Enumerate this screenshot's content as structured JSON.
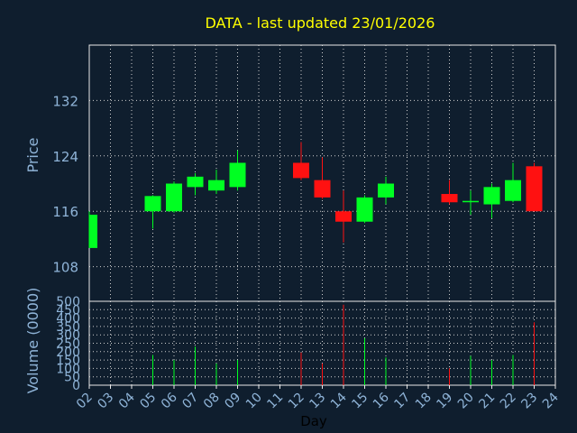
{
  "title": "DATA - last updated 23/01/2026",
  "colors": {
    "background": "#0f1e2e",
    "title": "#ffff00",
    "axis_text": "#8fb4d8",
    "up": "#00ff22",
    "down": "#ff1111",
    "grid": "#d0d0d0",
    "frame": "#e8e8e8"
  },
  "chart_data": [
    {
      "type": "candlestick",
      "ylabel": "Price",
      "ylim": [
        103,
        140
      ],
      "yticks": [
        108,
        116,
        124,
        132
      ],
      "x_days": [
        "02",
        "03",
        "04",
        "05",
        "06",
        "07",
        "08",
        "09",
        "10",
        "11",
        "12",
        "13",
        "14",
        "15",
        "16",
        "17",
        "18",
        "19",
        "20",
        "21",
        "22",
        "23",
        "24"
      ],
      "grid": true,
      "candles": [
        {
          "day": "02",
          "open": 110.7,
          "close": 115.5,
          "high": 116.0,
          "low": 110.7
        },
        {
          "day": "05",
          "open": 116.0,
          "close": 118.2,
          "high": 118.3,
          "low": 113.5
        },
        {
          "day": "06",
          "open": 116.0,
          "close": 120.0,
          "high": 120.3,
          "low": 115.8
        },
        {
          "day": "07",
          "open": 119.5,
          "close": 121.0,
          "high": 121.5,
          "low": 118.3
        },
        {
          "day": "08",
          "open": 119.0,
          "close": 120.5,
          "high": 122.0,
          "low": 118.5
        },
        {
          "day": "09",
          "open": 119.5,
          "close": 123.0,
          "high": 124.8,
          "low": 119.0
        },
        {
          "day": "12",
          "open": 123.0,
          "close": 120.8,
          "high": 126.0,
          "low": 120.5
        },
        {
          "day": "13",
          "open": 120.5,
          "close": 118.0,
          "high": 123.8,
          "low": 117.8
        },
        {
          "day": "14",
          "open": 116.0,
          "close": 114.5,
          "high": 119.0,
          "low": 111.5
        },
        {
          "day": "15",
          "open": 114.5,
          "close": 118.0,
          "high": 118.3,
          "low": 114.3
        },
        {
          "day": "16",
          "open": 118.0,
          "close": 120.0,
          "high": 121.0,
          "low": 117.0
        },
        {
          "day": "19",
          "open": 118.5,
          "close": 117.3,
          "high": 120.5,
          "low": 117.0
        },
        {
          "day": "20",
          "open": 117.5,
          "close": 117.5,
          "high": 119.0,
          "low": 115.5
        },
        {
          "day": "21",
          "open": 117.0,
          "close": 119.5,
          "high": 120.0,
          "low": 115.0
        },
        {
          "day": "22",
          "open": 117.5,
          "close": 120.5,
          "high": 123.0,
          "low": 117.3
        },
        {
          "day": "23",
          "open": 122.5,
          "close": 116.0,
          "high": 123.0,
          "low": 116.0
        }
      ]
    },
    {
      "type": "bar",
      "ylabel": "Volume (0000)",
      "xlabel": "Day",
      "ylim": [
        0,
        500
      ],
      "yticks": [
        0,
        50,
        100,
        150,
        200,
        250,
        300,
        350,
        400,
        450,
        500
      ],
      "grid": true,
      "bars": [
        {
          "day": "05",
          "value": 180,
          "direction": "up"
        },
        {
          "day": "06",
          "value": 150,
          "direction": "up"
        },
        {
          "day": "07",
          "value": 230,
          "direction": "up"
        },
        {
          "day": "08",
          "value": 130,
          "direction": "up"
        },
        {
          "day": "09",
          "value": 150,
          "direction": "up"
        },
        {
          "day": "12",
          "value": 195,
          "direction": "down"
        },
        {
          "day": "13",
          "value": 130,
          "direction": "down"
        },
        {
          "day": "14",
          "value": 480,
          "direction": "down"
        },
        {
          "day": "15",
          "value": 280,
          "direction": "up"
        },
        {
          "day": "16",
          "value": 165,
          "direction": "up"
        },
        {
          "day": "19",
          "value": 100,
          "direction": "down"
        },
        {
          "day": "20",
          "value": 175,
          "direction": "up"
        },
        {
          "day": "21",
          "value": 150,
          "direction": "up"
        },
        {
          "day": "22",
          "value": 180,
          "direction": "up"
        },
        {
          "day": "23",
          "value": 375,
          "direction": "down"
        }
      ]
    }
  ]
}
